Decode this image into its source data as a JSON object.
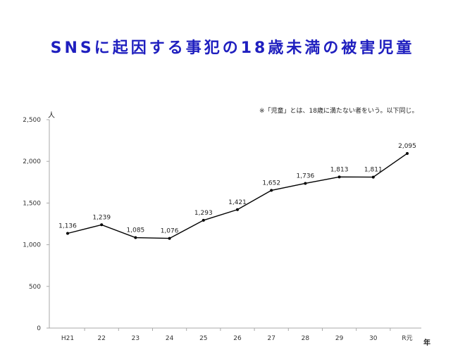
{
  "title": "SNSに起因する事犯の18歳未満の被害児童",
  "note": "※「児童」とは、18歳に満たない者をいう。以下同じ。",
  "chart_data": {
    "type": "line",
    "categories": [
      "H21",
      "22",
      "23",
      "24",
      "25",
      "26",
      "27",
      "28",
      "29",
      "30",
      "R元"
    ],
    "values": [
      1136,
      1239,
      1085,
      1076,
      1293,
      1421,
      1652,
      1736,
      1813,
      1811,
      2095
    ],
    "data_labels": [
      "1,136",
      "1,239",
      "1,085",
      "1,076",
      "1,293",
      "1,421",
      "1,652",
      "1,736",
      "1,813",
      "1,811",
      "2,095"
    ],
    "ylabel": "人",
    "xlabel": "年",
    "ylim": [
      0,
      2500
    ],
    "yticks": [
      0,
      500,
      1000,
      1500,
      2000,
      2500
    ],
    "ytick_labels": [
      "0",
      "500",
      "1,000",
      "1,500",
      "2,000",
      "2,500"
    ],
    "grid": false,
    "line_color": "#000000"
  }
}
